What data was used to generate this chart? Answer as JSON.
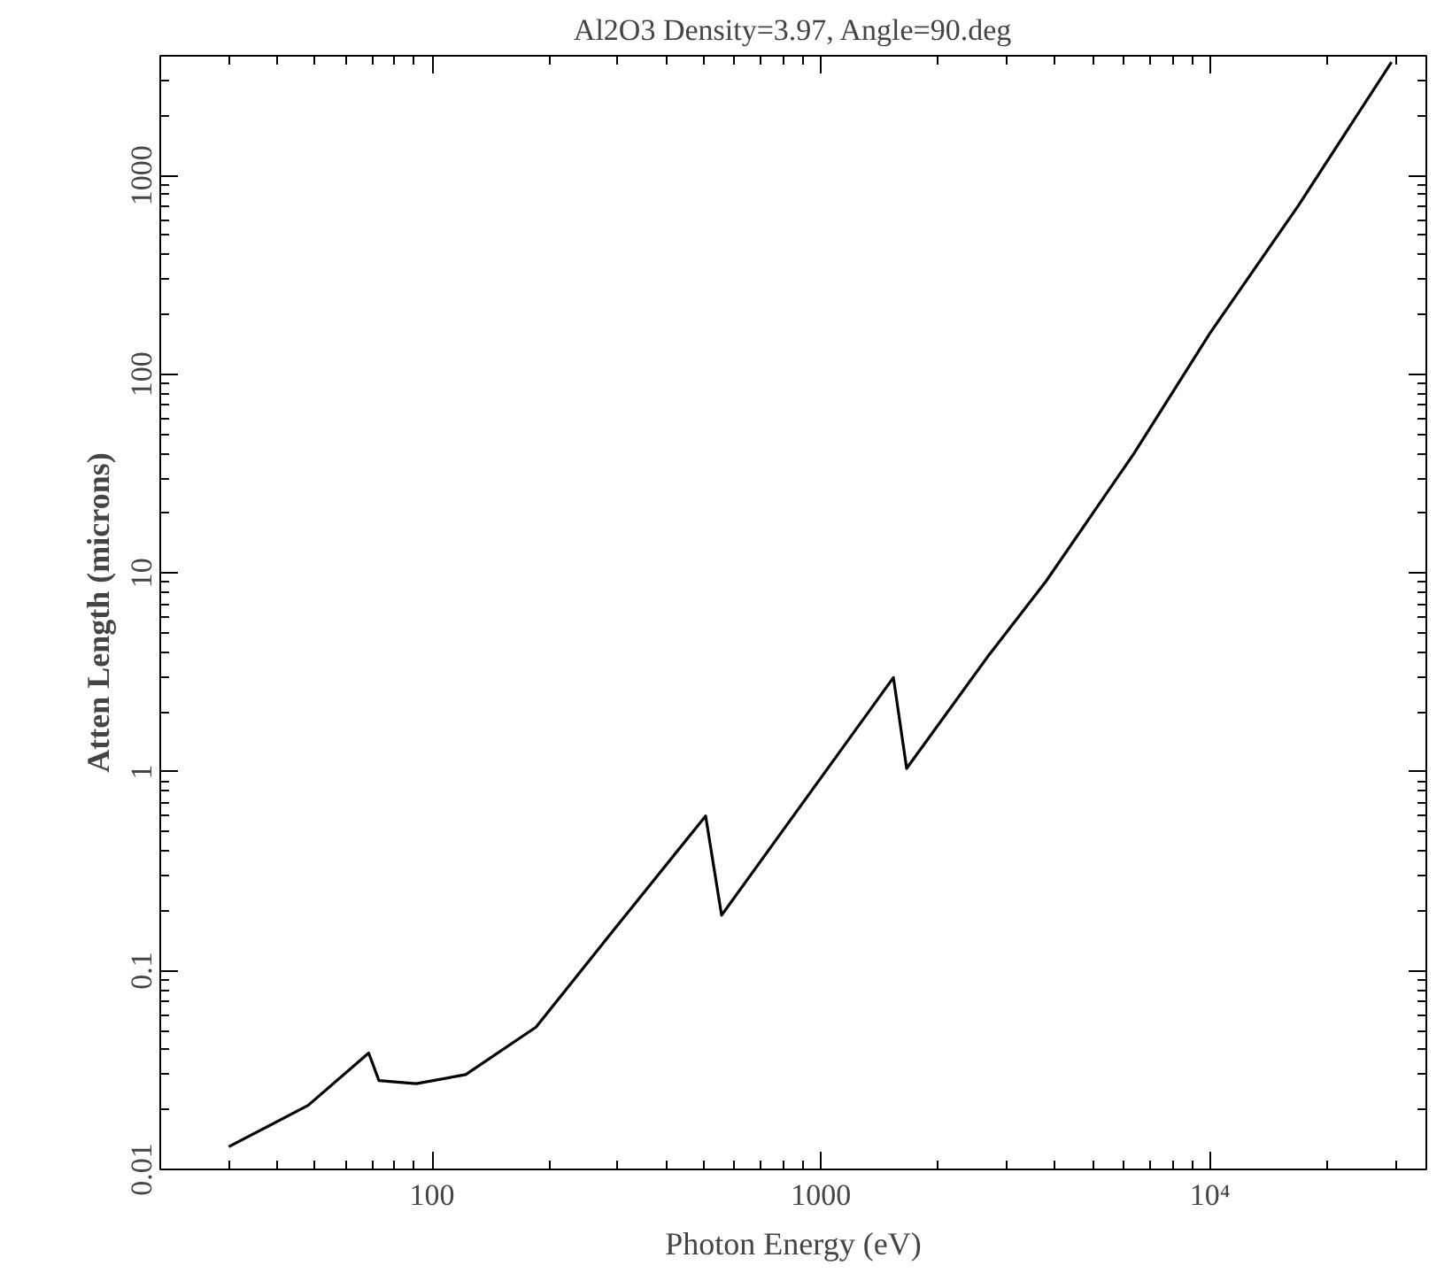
{
  "chart_data": {
    "type": "line",
    "title": "Al2O3 Density=3.97, Angle=90.deg",
    "xlabel": "Photon Energy (eV)",
    "ylabel": "Atten Length (microns)",
    "log": "xy",
    "grid": false,
    "marker": "none",
    "line_style": "solid",
    "xlim": [
      20,
      36000
    ],
    "ylim": [
      0.01,
      4000
    ],
    "xticks": [
      100,
      1000,
      {
        "value": 10000,
        "label": "10⁴"
      }
    ],
    "yticks": [
      0.01,
      0.1,
      1,
      10,
      100,
      1000
    ],
    "series": [
      {
        "color": "#000000",
        "x": [
          30,
          48,
          68.7,
          73,
          91,
          122,
          185,
          299,
          505,
          555,
          1535,
          1660,
          2710,
          3790,
          6380,
          10000,
          16900,
          29300
        ],
        "values": [
          0.013,
          0.021,
          0.0385,
          0.028,
          0.027,
          0.03,
          0.052,
          0.168,
          0.6,
          0.19,
          2.98,
          1.04,
          3.9,
          9.1,
          40,
          161,
          708,
          3720
        ]
      }
    ]
  }
}
